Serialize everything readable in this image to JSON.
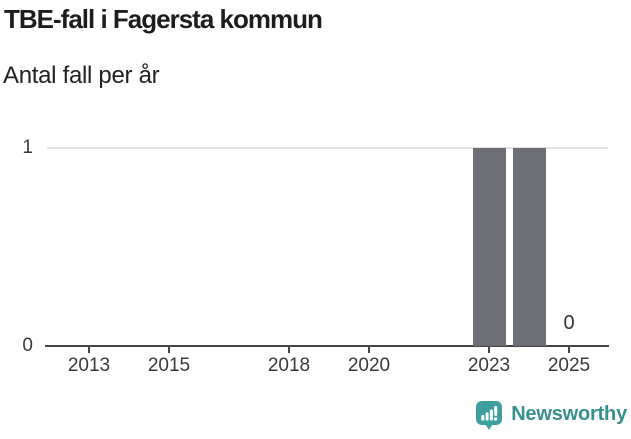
{
  "header": {
    "title": "TBE-fall i Fagersta kommun",
    "subtitle": "Antal fall per år"
  },
  "chart_data": {
    "type": "bar",
    "title": "TBE-fall i Fagersta kommun",
    "subtitle": "Antal fall per år",
    "x": [
      2012,
      2013,
      2014,
      2015,
      2016,
      2017,
      2018,
      2019,
      2020,
      2021,
      2022,
      2023,
      2024,
      2025
    ],
    "values": [
      0,
      0,
      0,
      0,
      0,
      0,
      0,
      0,
      0,
      0,
      0,
      1,
      1,
      0
    ],
    "xticks": [
      2013,
      2015,
      2018,
      2020,
      2023,
      2025
    ],
    "yticks": [
      0,
      1
    ],
    "ylim": [
      0,
      1
    ],
    "xlabel": "",
    "ylabel": "Antal fall per år",
    "grid": "single horizontal gridline at y=1",
    "legend": "none",
    "annotations": [
      {
        "x": 2025,
        "label": "0"
      }
    ],
    "bar_color": "#6e6e76"
  },
  "branding": {
    "name": "Newsworthy"
  },
  "colors": {
    "background": "#ffffff",
    "title": "#1d1d1b",
    "subtitle": "#222222",
    "bar": "#6e6e76",
    "gridline": "#e2e2e2",
    "axis": "#474747",
    "tick_label": "#3a3a3a",
    "annotation": "#333333",
    "brand_teal": "#3f9f9f",
    "brand_text": "#35908e"
  }
}
